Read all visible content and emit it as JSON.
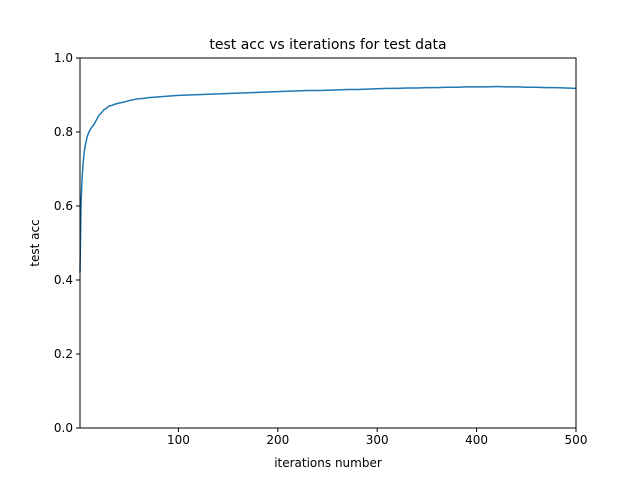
{
  "chart_data": {
    "type": "line",
    "title": "test acc vs iterations for test data",
    "xlabel": "iterations number",
    "ylabel": "test acc",
    "xlim": [
      1,
      500
    ],
    "ylim": [
      0.0,
      1.0
    ],
    "xticks": [
      100,
      200,
      300,
      400,
      500
    ],
    "yticks": [
      0.0,
      0.2,
      0.4,
      0.6,
      0.8,
      1.0
    ],
    "xtick_labels": [
      "100",
      "200",
      "300",
      "400",
      "500"
    ],
    "ytick_labels": [
      "0.0",
      "0.2",
      "0.4",
      "0.6",
      "0.8",
      "1.0"
    ],
    "grid": false,
    "legend": false,
    "series": [
      {
        "color": "#1f77b4",
        "x": [
          1,
          2,
          3,
          4,
          5,
          6,
          8,
          10,
          12,
          15,
          18,
          20,
          22,
          25,
          28,
          30,
          33,
          36,
          40,
          44,
          48,
          52,
          56,
          60,
          65,
          70,
          75,
          80,
          85,
          90,
          95,
          100,
          110,
          120,
          130,
          140,
          150,
          160,
          170,
          180,
          190,
          200,
          210,
          220,
          230,
          240,
          250,
          260,
          270,
          280,
          290,
          300,
          310,
          320,
          330,
          340,
          350,
          360,
          370,
          380,
          390,
          400,
          410,
          420,
          430,
          440,
          450,
          460,
          470,
          480,
          490,
          500
        ],
        "y": [
          0.42,
          0.6,
          0.67,
          0.71,
          0.74,
          0.76,
          0.785,
          0.8,
          0.81,
          0.82,
          0.835,
          0.845,
          0.85,
          0.86,
          0.865,
          0.87,
          0.872,
          0.875,
          0.878,
          0.88,
          0.883,
          0.886,
          0.888,
          0.89,
          0.891,
          0.893,
          0.894,
          0.895,
          0.896,
          0.897,
          0.898,
          0.899,
          0.9,
          0.901,
          0.902,
          0.903,
          0.904,
          0.905,
          0.906,
          0.907,
          0.908,
          0.909,
          0.91,
          0.911,
          0.912,
          0.912,
          0.913,
          0.914,
          0.915,
          0.915,
          0.916,
          0.917,
          0.918,
          0.918,
          0.919,
          0.919,
          0.92,
          0.92,
          0.921,
          0.921,
          0.922,
          0.922,
          0.922,
          0.923,
          0.922,
          0.922,
          0.921,
          0.921,
          0.92,
          0.92,
          0.919,
          0.918
        ]
      }
    ]
  }
}
